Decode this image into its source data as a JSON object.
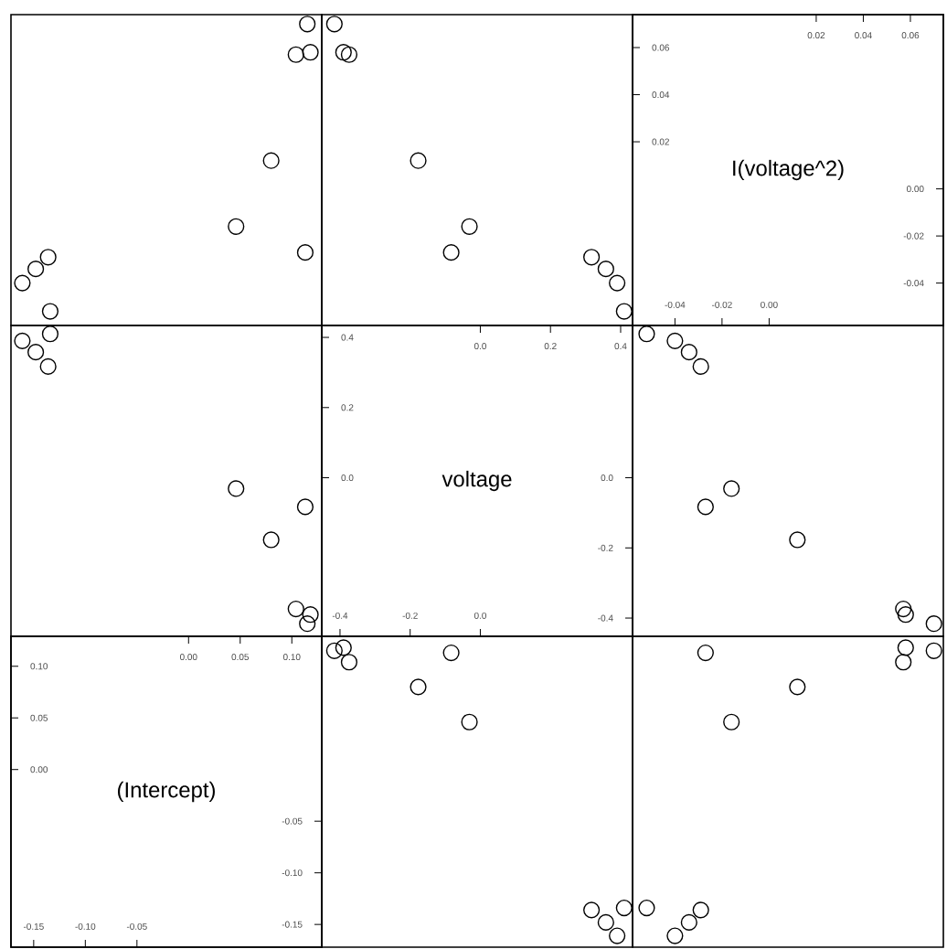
{
  "chart_data": [
    {
      "type": "scatter",
      "x": [
        0.115,
        0.104,
        0.118,
        0.08,
        0.046,
        0.113,
        -0.136,
        -0.148,
        -0.161,
        -0.134
      ],
      "values": [
        0.07,
        0.057,
        0.058,
        0.012,
        -0.016,
        -0.027,
        -0.029,
        -0.034,
        -0.04,
        -0.052
      ],
      "xlim": [
        -0.172,
        0.129
      ],
      "ylim": [
        -0.058,
        0.074
      ],
      "tick_labels": false,
      "marker": "circle",
      "color": "#000000"
    },
    {
      "type": "scatter",
      "x": [
        -0.416,
        -0.374,
        -0.39,
        -0.177,
        -0.031,
        -0.083,
        0.317,
        0.358,
        0.39,
        0.41
      ],
      "values": [
        0.07,
        0.057,
        0.058,
        0.012,
        -0.016,
        -0.027,
        -0.029,
        -0.034,
        -0.04,
        -0.052
      ],
      "xlim": [
        -0.452,
        0.434
      ],
      "ylim": [
        -0.058,
        0.074
      ],
      "tick_labels": false,
      "marker": "circle",
      "color": "#000000"
    },
    {
      "type": "scatter",
      "title": "I(voltage^2)",
      "xlim": [
        -0.058,
        0.074
      ],
      "ylim": [
        -0.058,
        0.074
      ],
      "xticks": [
        {
          "value": -0.04,
          "label": "-0.04"
        },
        {
          "value": -0.02,
          "label": "-0.02"
        },
        {
          "value": 0,
          "label": "0.00"
        }
      ],
      "x2lim": [
        -0.058,
        0.074
      ],
      "x2ticks": [
        {
          "value": 0.02,
          "label": "0.02"
        },
        {
          "value": 0.04,
          "label": "0.04"
        },
        {
          "value": 0.06,
          "label": "0.06"
        }
      ],
      "yticks": [
        {
          "value": 0.06,
          "label": "0.06"
        },
        {
          "value": 0.04,
          "label": "0.04"
        },
        {
          "value": 0.02,
          "label": "0.02"
        }
      ],
      "y2lim": [
        -0.058,
        0.074
      ],
      "y2ticks": [
        {
          "value": 0,
          "label": "0.00"
        },
        {
          "value": -0.02,
          "label": "-0.02"
        },
        {
          "value": -0.04,
          "label": "-0.04"
        }
      ]
    },
    {
      "type": "scatter",
      "x": [
        0.115,
        0.104,
        0.118,
        0.08,
        0.046,
        0.113,
        -0.136,
        -0.148,
        -0.161,
        -0.134
      ],
      "values": [
        -0.416,
        -0.374,
        -0.39,
        -0.177,
        -0.031,
        -0.083,
        0.317,
        0.358,
        0.39,
        0.41
      ],
      "xlim": [
        -0.172,
        0.129
      ],
      "ylim": [
        -0.452,
        0.434
      ],
      "tick_labels": false,
      "marker": "circle",
      "color": "#000000"
    },
    {
      "type": "scatter",
      "title": "voltage",
      "xlim": [
        -0.452,
        0.434
      ],
      "ylim": [
        -0.452,
        0.434
      ],
      "xticks": [
        {
          "value": -0.4,
          "label": "-0.4"
        },
        {
          "value": -0.2,
          "label": "-0.2"
        },
        {
          "value": 0,
          "label": "0.0"
        }
      ],
      "x2lim": [
        -0.452,
        0.434
      ],
      "x2ticks": [
        {
          "value": 0,
          "label": "0.0"
        },
        {
          "value": 0.2,
          "label": "0.2"
        },
        {
          "value": 0.4,
          "label": "0.4"
        }
      ],
      "yticks": [
        {
          "value": 0.4,
          "label": "0.4"
        },
        {
          "value": 0.2,
          "label": "0.2"
        },
        {
          "value": 0,
          "label": "0.0"
        }
      ],
      "y2lim": [
        -0.452,
        0.434
      ],
      "y2ticks": [
        {
          "value": 0,
          "label": "0.0"
        },
        {
          "value": -0.2,
          "label": "-0.2"
        },
        {
          "value": -0.4,
          "label": "-0.4"
        }
      ]
    },
    {
      "type": "scatter",
      "x": [
        0.07,
        0.057,
        0.058,
        0.012,
        -0.016,
        -0.027,
        -0.029,
        -0.034,
        -0.04,
        -0.052
      ],
      "values": [
        -0.416,
        -0.374,
        -0.39,
        -0.177,
        -0.031,
        -0.083,
        0.317,
        0.358,
        0.39,
        0.41
      ],
      "xlim": [
        -0.058,
        0.074
      ],
      "ylim": [
        -0.452,
        0.434
      ],
      "tick_labels": false,
      "marker": "circle",
      "color": "#000000"
    },
    {
      "type": "scatter",
      "title": "(Intercept)",
      "xlim": [
        -0.172,
        0.129
      ],
      "ylim": [
        -0.172,
        0.129
      ],
      "xticks": [
        {
          "value": -0.15,
          "label": "-0.15"
        },
        {
          "value": -0.1,
          "label": "-0.10"
        },
        {
          "value": -0.05,
          "label": "-0.05"
        }
      ],
      "x2lim": [
        -0.172,
        0.129
      ],
      "x2ticks": [
        {
          "value": 0,
          "label": "0.00"
        },
        {
          "value": 0.05,
          "label": "0.05"
        },
        {
          "value": 0.1,
          "label": "0.10"
        }
      ],
      "yticks": [
        {
          "value": 0.1,
          "label": "0.10"
        },
        {
          "value": 0.05,
          "label": "0.05"
        },
        {
          "value": 0,
          "label": "0.00"
        }
      ],
      "y2lim": [
        -0.172,
        0.129
      ],
      "y2ticks": [
        {
          "value": -0.05,
          "label": "-0.05"
        },
        {
          "value": -0.1,
          "label": "-0.10"
        },
        {
          "value": -0.15,
          "label": "-0.15"
        }
      ]
    },
    {
      "type": "scatter",
      "x": [
        -0.416,
        -0.374,
        -0.39,
        -0.177,
        -0.031,
        -0.083,
        0.317,
        0.358,
        0.39,
        0.41
      ],
      "values": [
        0.115,
        0.104,
        0.118,
        0.08,
        0.046,
        0.113,
        -0.136,
        -0.148,
        -0.161,
        -0.134
      ],
      "xlim": [
        -0.452,
        0.434
      ],
      "ylim": [
        -0.172,
        0.129
      ],
      "tick_labels": false,
      "marker": "circle",
      "color": "#000000"
    },
    {
      "type": "scatter",
      "x": [
        0.07,
        0.057,
        0.058,
        0.012,
        -0.016,
        -0.027,
        -0.029,
        -0.034,
        -0.04,
        -0.052
      ],
      "values": [
        0.115,
        0.104,
        0.118,
        0.08,
        0.046,
        0.113,
        -0.136,
        -0.148,
        -0.161,
        -0.134
      ],
      "xlim": [
        -0.058,
        0.074
      ],
      "ylim": [
        -0.172,
        0.129
      ],
      "tick_labels": false,
      "marker": "circle",
      "color": "#000000"
    }
  ]
}
